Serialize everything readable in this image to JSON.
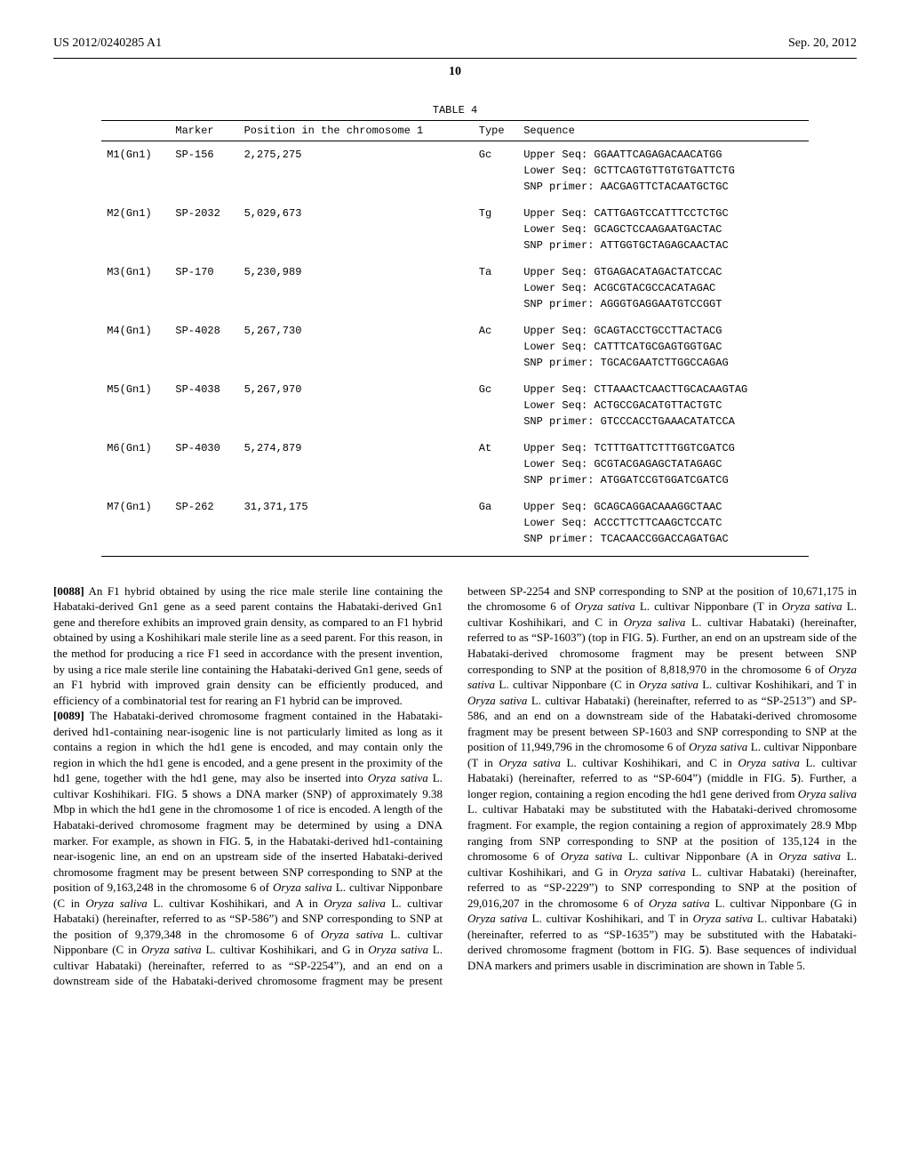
{
  "header": {
    "left": "US 2012/0240285 A1",
    "right": "Sep. 20, 2012"
  },
  "page_number": "10",
  "table": {
    "caption": "TABLE 4",
    "columns": [
      "",
      "Marker",
      "Position in the\nchromosome 1",
      "Type",
      "Sequence"
    ],
    "font_family": "Courier New",
    "font_size_pt": 9,
    "rows": [
      {
        "c0": "M1(Gn1)",
        "c1": "SP-156",
        "c2": "2,275,275",
        "c3": "Gc",
        "seq": "Upper Seq: GGAATTCAGAGACAACATGG\nLower Seq: GCTTCAGTGTTGTGTGATTCTG\nSNP primer: AACGAGTTCTACAATGCTGC"
      },
      {
        "c0": "M2(Gn1)",
        "c1": "SP-2032",
        "c2": "5,029,673",
        "c3": "Tg",
        "seq": "Upper Seq: CATTGAGTCCATTTCCTCTGC\nLower Seq: GCAGCTCCAAGAATGACTAC\nSNP primer: ATTGGTGCTAGAGCAACTAC"
      },
      {
        "c0": "M3(Gn1)",
        "c1": "SP-170",
        "c2": "5,230,989",
        "c3": "Ta",
        "seq": "Upper Seq: GTGAGACATAGACTATCCAC\nLower Seq: ACGCGTACGCCACATAGAC\nSNP primer: AGGGTGAGGAATGTCCGGT"
      },
      {
        "c0": "M4(Gn1)",
        "c1": "SP-4028",
        "c2": "5,267,730",
        "c3": "Ac",
        "seq": "Upper Seq: GCAGTACCTGCCTTACTACG\nLower Seq: CATTTCATGCGAGTGGTGAC\nSNP primer: TGCACGAATCTTGGCCAGAG"
      },
      {
        "c0": "M5(Gn1)",
        "c1": "SP-4038",
        "c2": "5,267,970",
        "c3": "Gc",
        "seq": "Upper Seq: CTTAAACTCAACTTGCACAAGTAG\nLower Seq: ACTGCCGACATGTTACTGTC\nSNP primer: GTCCCACCTGAAACATATCCA"
      },
      {
        "c0": "M6(Gn1)",
        "c1": "SP-4030",
        "c2": "5,274,879",
        "c3": "At",
        "seq": "Upper Seq: TCTTTGATTCTTTGGTCGATCG\nLower Seq: GCGTACGAGAGCTATAGAGC\nSNP primer: ATGGATCCGTGGATCGATCG"
      },
      {
        "c0": "M7(Gn1)",
        "c1": "SP-262",
        "c2": "31,371,175",
        "c3": "Ga",
        "seq": "Upper Seq: GCAGCAGGACAAAGGCTAAC\nLower Seq: ACCCTTCTTCAAGCTCCATC\nSNP primer: TCACAACCGGACCAGATGAC"
      }
    ]
  },
  "paragraphs": {
    "p0088_num": "[0088]",
    "p0088_text": " An F1 hybrid obtained by using the rice male sterile line containing the Habataki-derived Gn1 gene as a seed parent contains the Habataki-derived Gn1 gene and therefore exhibits an improved grain density, as compared to an F1 hybrid obtained by using a Koshihikari male sterile line as a seed parent. For this reason, in the method for producing a rice F1 seed in accordance with the present invention, by using a rice male sterile line containing the Habataki-derived Gn1 gene, seeds of an F1 hybrid with improved grain density can be efficiently produced, and efficiency of a combinatorial test for rearing an F1 hybrid can be improved.",
    "p0089_num": "[0089]",
    "p0089_text_a": " The Habataki-derived chromosome fragment contained in the Habataki-derived hd1-containing near-isogenic line is not particularly limited as long as it contains a region in which the hd1 gene is encoded, and may contain only the region in which the hd1 gene is encoded, and a gene present in the proximity of the hd1 gene, together with the hd1 gene, may also be inserted into ",
    "p0089_italic_1": "Oryza sativa",
    "p0089_text_b": " L. cultivar Koshihikari. FIG. ",
    "p0089_bold_1": "5",
    "p0089_text_c": " shows a DNA marker (SNP) of approximately 9.38 Mbp in which the hd1 gene in the chromosome 1 of rice is encoded. A length of the Habataki-derived chromosome fragment may be determined by using a DNA marker. For example, as shown in FIG. ",
    "p0089_bold_2": "5",
    "p0089_text_d": ", in the Habataki-derived hd1-containing near-isogenic line, an end on an upstream side of the inserted Habataki-derived chromosome fragment may be present between SNP corresponding to SNP at the position of 9,163,248 in the chromosome 6 of ",
    "p0089_italic_2": "Oryza saliva",
    "p0089_text_e": " L. cultivar Nipponbare (C in ",
    "p0089_italic_3": "Oryza saliva",
    "p0089_text_f": " L. cultivar Koshihikari, and A in ",
    "p0089_italic_4": "Oryza saliva",
    "p0089_text_g": " L. cultivar Habataki) (hereinafter, referred to as “SP-586”) and SNP corresponding to SNP at the position of 9,379,348 in the chromosome 6 of ",
    "p0089_italic_5": "Oryza sativa",
    "p0089_text_h": " L. cultivar Nipponbare (C in ",
    "p0089_italic_6": "Oryza sativa",
    "p0089_text_i": " L. cultivar Koshihikari, and G in ",
    "p0089_italic_7": "Oryza sativa",
    "p0089_text_j": " L. cultivar Habataki) (hereinafter, referred to as “SP-2254”), and an end on a downstream side of the Habataki-derived chromosome fragment may be present between SP-2254 and SNP corresponding to SNP at the posi",
    "p0089_text_k": "tion of 10,671,175 in the chromosome 6 of ",
    "p0089_italic_8": "Oryza sativa",
    "p0089_text_l": " L. cultivar Nipponbare (T in ",
    "p0089_italic_9": "Oryza sativa",
    "p0089_text_m": " L. cultivar Koshihikari, and C in ",
    "p0089_italic_10": "Oryza saliva",
    "p0089_text_n": " L. cultivar Habataki) (hereinafter, referred to as “SP-1603”) (top in FIG. ",
    "p0089_bold_3": "5",
    "p0089_text_o": "). Further, an end on an upstream side of the Habataki-derived chromosome fragment may be present between SNP corresponding to SNP at the position of 8,818,970 in the chromosome 6 of ",
    "p0089_italic_11": "Oryza sativa",
    "p0089_text_p": " L. cultivar Nipponbare (C in ",
    "p0089_italic_12": "Oryza sativa",
    "p0089_text_q": " L. cultivar Koshihikari, and T in ",
    "p0089_italic_13": "Oryza sativa",
    "p0089_text_r": " L. cultivar Habataki) (hereinafter, referred to as “SP-2513”) and SP-586, and an end on a downstream side of the Habataki-derived chromosome fragment may be present between SP-1603 and SNP corresponding to SNP at the position of 11,949,796 in the chromosome 6 of ",
    "p0089_italic_14": "Oryza sativa",
    "p0089_text_s": " L. cultivar Nipponbare (T in ",
    "p0089_italic_15": "Oryza sativa",
    "p0089_text_t": " L. cultivar Koshihikari, and C in ",
    "p0089_italic_16": "Oryza sativa",
    "p0089_text_u": " L. cultivar Habataki) (hereinafter, referred to as “SP-604”) (middle in FIG. ",
    "p0089_bold_4": "5",
    "p0089_text_v": "). Further, a longer region, containing a region encoding the hd1 gene derived from ",
    "p0089_italic_17": "Oryza saliva",
    "p0089_text_w": " L. cultivar Habataki may be substituted with the Habataki-derived chromosome fragment. For example, the region containing a region of approximately 28.9 Mbp ranging from SNP corresponding to SNP at the position of 135,124 in the chromosome 6 of ",
    "p0089_italic_18": "Oryza sativa",
    "p0089_text_x": " L. cultivar Nipponbare (A in ",
    "p0089_italic_19": "Oryza sativa",
    "p0089_text_y": " L. cultivar Koshihikari, and G in ",
    "p0089_italic_20": "Oryza sativa",
    "p0089_text_z": " L. cultivar Habataki) (hereinafter, referred to as “SP-2229”) to SNP corresponding to SNP at the position of 29,016,207 in the chromosome 6 of ",
    "p0089_italic_21": "Oryza sativa",
    "p0089_text_aa": " L. cultivar Nipponbare (G in ",
    "p0089_italic_22": "Oryza sativa",
    "p0089_text_ab": " L. cultivar Koshihikari, and T in ",
    "p0089_italic_23": "Oryza sativa",
    "p0089_text_ac": " L. cultivar Habataki) (hereinafter, referred to as “SP-1635”) may be substituted with the Habataki-derived chromosome fragment (bottom in FIG. ",
    "p0089_bold_5": "5",
    "p0089_text_ad": "). Base sequences of individual DNA markers and primers usable in discrimination are shown in Table 5."
  }
}
